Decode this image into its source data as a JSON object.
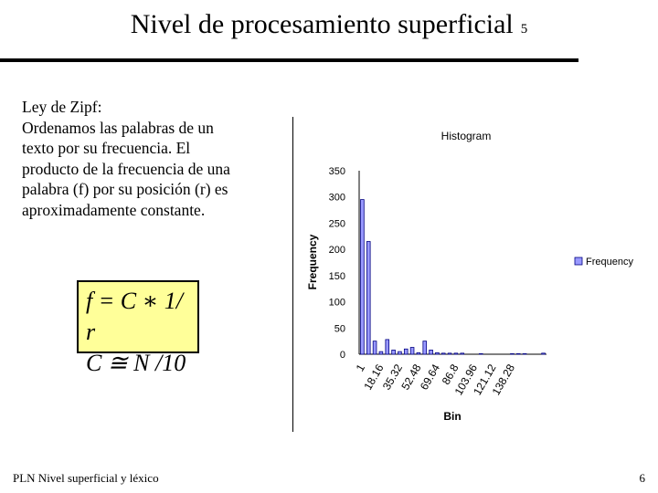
{
  "slide": {
    "title": "Nivel de procesamiento superficial",
    "slide_number": "5",
    "body_lines": [
      "Ley de Zipf:",
      "Ordenamos las palabras de un",
      "texto por su frecuencia. El",
      "producto de la frecuencia de una",
      "palabra (f) por su  posición (r) es",
      "aproximadamente constante."
    ],
    "formula_line1": "f = C ∗ 1/ r",
    "formula_line2": "C ≅ N /10",
    "footer": "PLN Nivel superficial y léxico",
    "page_number": "6"
  },
  "colors": {
    "bar_fill": "#9999ff",
    "bar_stroke": "#000080",
    "formula_bg": "#ffff99"
  },
  "chart_data": {
    "type": "bar",
    "title": "Histogram",
    "xlabel": "Bin",
    "ylabel": "Frequency",
    "ylim": [
      0,
      350
    ],
    "yticks": [
      0,
      50,
      100,
      150,
      200,
      250,
      300,
      350
    ],
    "legend": "right",
    "series": [
      {
        "name": "Frequency",
        "values": [
          295,
          215,
          25,
          5,
          28,
          8,
          5,
          10,
          13,
          3,
          25,
          8,
          3,
          2,
          2,
          2,
          2,
          0,
          0,
          1,
          0,
          0,
          0,
          0,
          1,
          1,
          1,
          0,
          0,
          2
        ]
      }
    ],
    "x_tick_labels": [
      "1",
      "18.16",
      "35.32",
      "52.48",
      "69.64",
      "86.8",
      "103.96",
      "121.12",
      "138.28"
    ]
  }
}
